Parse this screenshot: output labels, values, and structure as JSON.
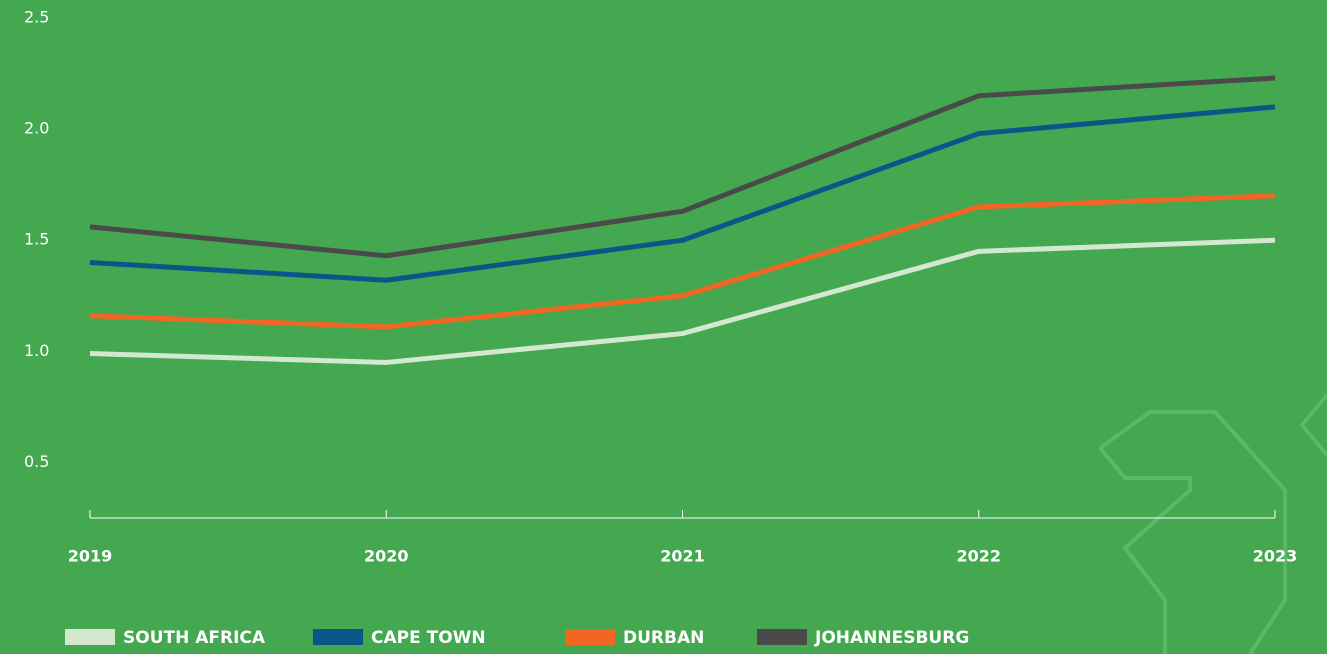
{
  "chart_data": {
    "type": "line",
    "categories": [
      "2019",
      "2020",
      "2021",
      "2022",
      "2023"
    ],
    "series": [
      {
        "name": "SOUTH AFRICA",
        "color": "#d3e8cf",
        "values": [
          0.99,
          0.95,
          1.08,
          1.45,
          1.5
        ]
      },
      {
        "name": "CAPE TOWN",
        "color": "#0b5688",
        "values": [
          1.4,
          1.32,
          1.5,
          1.98,
          2.1
        ]
      },
      {
        "name": "DURBAN",
        "color": "#f26522",
        "values": [
          1.16,
          1.11,
          1.25,
          1.65,
          1.7
        ]
      },
      {
        "name": "JOHANNESBURG",
        "color": "#4a4a4a",
        "values": [
          1.56,
          1.43,
          1.63,
          2.15,
          2.23
        ]
      }
    ],
    "ylim": [
      0.25,
      2.5
    ],
    "yticks": [
      0.5,
      {
        "value": 1.0,
        "label": "1.0"
      },
      1.5,
      {
        "value": 2.0,
        "label": "2.0"
      },
      {
        "value": 2.5,
        "label": "2.5"
      }
    ]
  }
}
